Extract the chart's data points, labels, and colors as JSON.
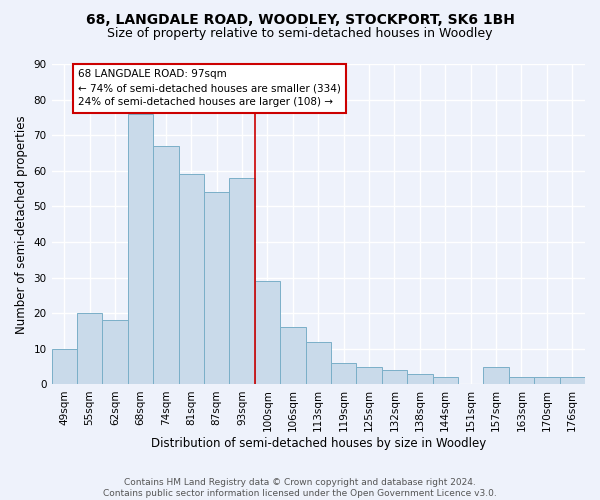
{
  "title": "68, LANGDALE ROAD, WOODLEY, STOCKPORT, SK6 1BH",
  "subtitle": "Size of property relative to semi-detached houses in Woodley",
  "xlabel": "Distribution of semi-detached houses by size in Woodley",
  "ylabel": "Number of semi-detached properties",
  "categories": [
    "49sqm",
    "55sqm",
    "62sqm",
    "68sqm",
    "74sqm",
    "81sqm",
    "87sqm",
    "93sqm",
    "100sqm",
    "106sqm",
    "113sqm",
    "119sqm",
    "125sqm",
    "132sqm",
    "138sqm",
    "144sqm",
    "151sqm",
    "157sqm",
    "163sqm",
    "170sqm",
    "176sqm"
  ],
  "values": [
    10,
    20,
    18,
    76,
    67,
    59,
    54,
    58,
    29,
    16,
    12,
    6,
    5,
    4,
    3,
    2,
    0,
    5,
    2,
    2,
    2
  ],
  "bar_color": "#c9daea",
  "bar_edge_color": "#7aafc8",
  "background_color": "#eef2fb",
  "grid_color": "#ffffff",
  "vline_x_index": 8,
  "vline_color": "#cc0000",
  "annotation_line1": "68 LANGDALE ROAD: 97sqm",
  "annotation_line2": "← 74% of semi-detached houses are smaller (334)",
  "annotation_line3": "24% of semi-detached houses are larger (108) →",
  "annotation_box_color": "#ffffff",
  "annotation_box_edge": "#cc0000",
  "ylim": [
    0,
    90
  ],
  "yticks": [
    0,
    10,
    20,
    30,
    40,
    50,
    60,
    70,
    80,
    90
  ],
  "footer": "Contains HM Land Registry data © Crown copyright and database right 2024.\nContains public sector information licensed under the Open Government Licence v3.0.",
  "title_fontsize": 10,
  "subtitle_fontsize": 9,
  "xlabel_fontsize": 8.5,
  "ylabel_fontsize": 8.5,
  "tick_fontsize": 7.5,
  "annotation_fontsize": 7.5,
  "footer_fontsize": 6.5
}
